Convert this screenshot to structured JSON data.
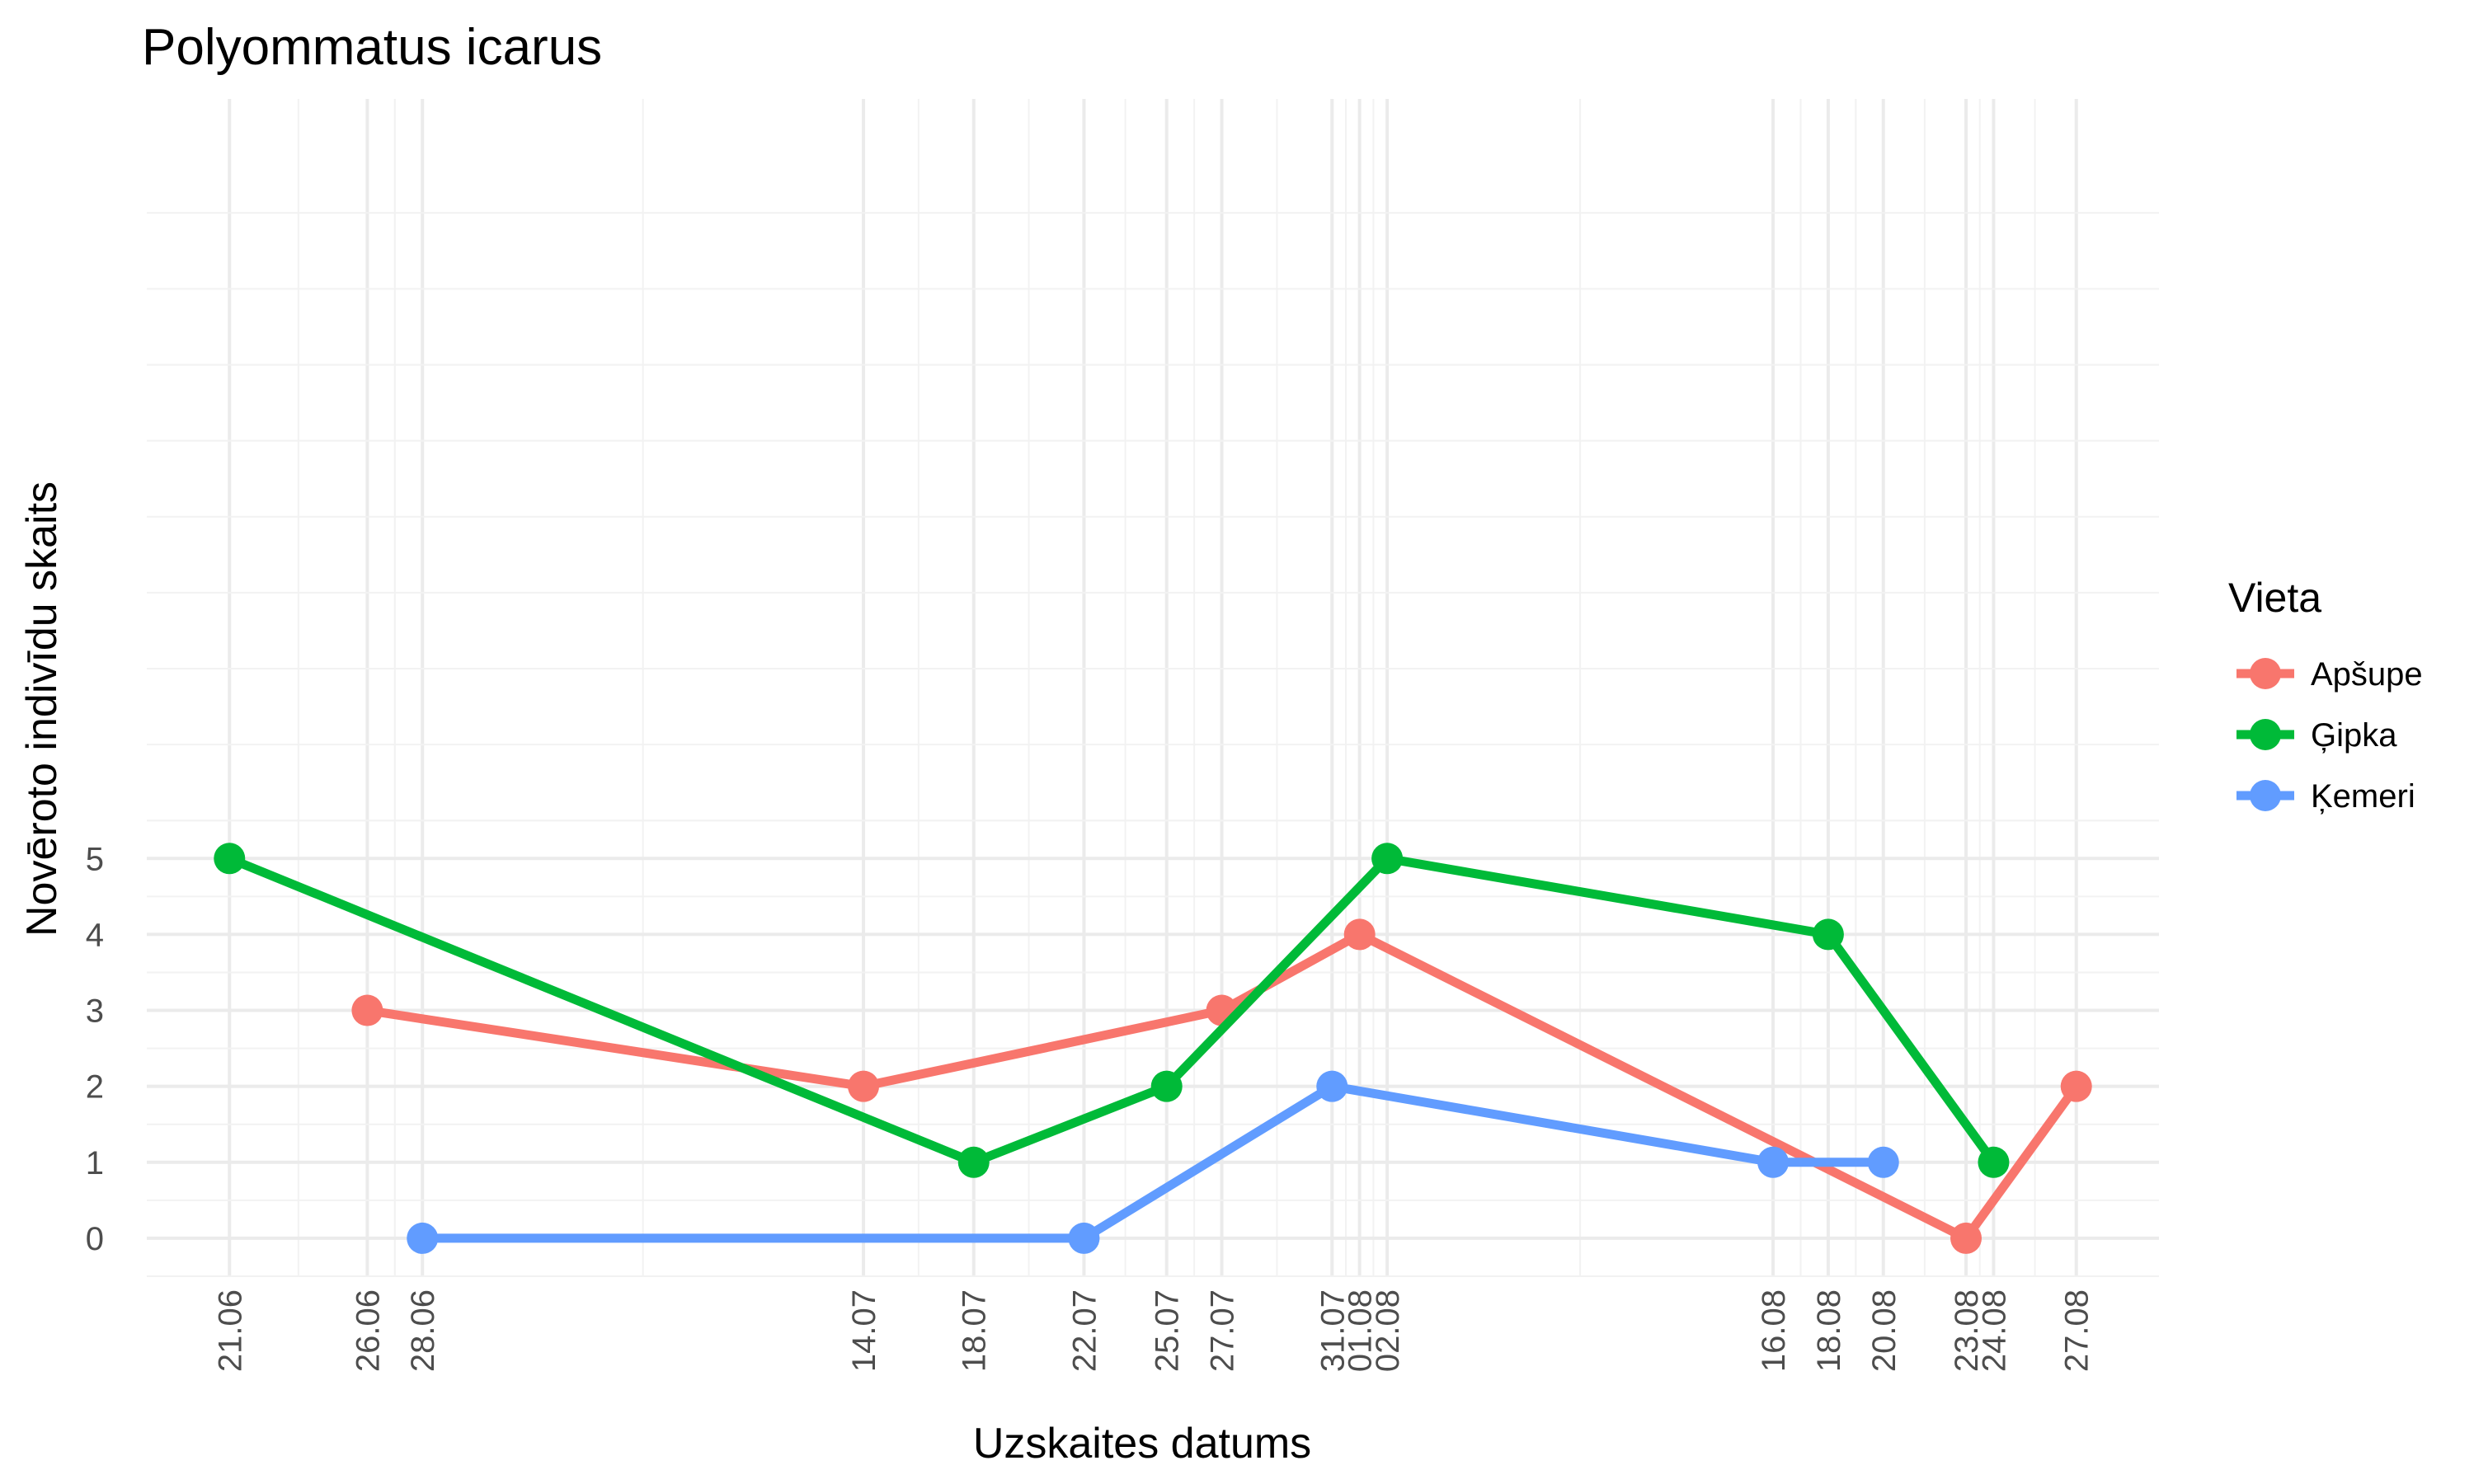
{
  "chart_data": {
    "type": "line",
    "title": "Polyommatus icarus",
    "xlabel": "Uzskaites datums",
    "ylabel": "Novēroto indivīdu skaits",
    "x_ticks": [
      "21.06",
      "26.06",
      "28.06",
      "14.07",
      "18.07",
      "22.07",
      "25.07",
      "27.07",
      "31.07",
      "01.08",
      "02.08",
      "16.08",
      "18.08",
      "20.08",
      "23.08",
      "24.08",
      "27.08"
    ],
    "y_ticks": [
      0,
      1,
      2,
      3,
      4,
      5
    ],
    "xlim": [
      "2023-06-18",
      "2023-08-30"
    ],
    "ylim": [
      -0.5,
      15
    ],
    "grid": true,
    "legend": {
      "title": "Vieta",
      "position": "right"
    },
    "series": [
      {
        "name": "Apšupe",
        "color": "#F8766D",
        "x": [
          "2023-06-26",
          "2023-07-14",
          "2023-07-27",
          "2023-08-01",
          "2023-08-23",
          "2023-08-27"
        ],
        "values": [
          3,
          2,
          3,
          4,
          0,
          2
        ]
      },
      {
        "name": "Ģipka",
        "color": "#00BA38",
        "x": [
          "2023-06-21",
          "2023-07-18",
          "2023-07-25",
          "2023-08-02",
          "2023-08-18",
          "2023-08-24"
        ],
        "values": [
          5,
          1,
          2,
          5,
          4,
          1
        ]
      },
      {
        "name": "Ķemeri",
        "color": "#619CFF",
        "x": [
          "2023-06-28",
          "2023-07-22",
          "2023-07-31",
          "2023-08-16",
          "2023-08-20"
        ],
        "values": [
          0,
          0,
          2,
          1,
          1
        ]
      }
    ]
  }
}
